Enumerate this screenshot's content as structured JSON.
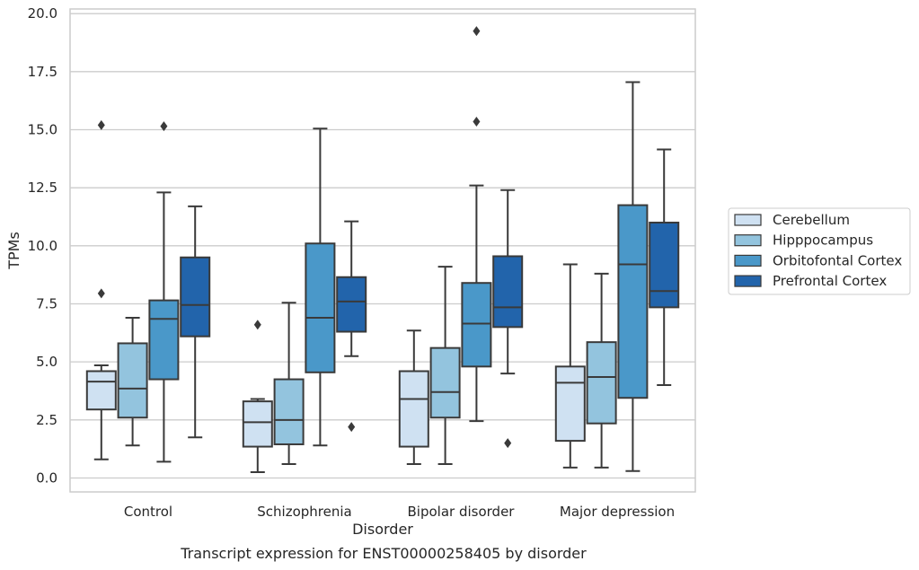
{
  "chart_data": {
    "type": "box",
    "title": "",
    "caption": "Transcript expression for ENST00000258405 by disorder",
    "xlabel": "Disorder",
    "ylabel": "TPMs",
    "ylim": [
      -0.6,
      20.2
    ],
    "yticks": [
      "0.0",
      "2.5",
      "5.0",
      "7.5",
      "10.0",
      "12.5",
      "15.0",
      "17.5",
      "20.0"
    ],
    "ytick_values": [
      0,
      2.5,
      5,
      7.5,
      10,
      12.5,
      15,
      17.5,
      20
    ],
    "grid": "horizontal",
    "legend_position": "right",
    "categories": [
      "Control",
      "Schizophrenia",
      "Bipolar disorder",
      "Major depression"
    ],
    "series": [
      {
        "name": "Cerebellum",
        "color": "#cfe1f2",
        "boxes": [
          {
            "whisker_low": 0.8,
            "q1": 2.95,
            "median": 4.15,
            "q3": 4.6,
            "whisker_high": 4.85,
            "outliers": [
              7.95,
              15.2
            ]
          },
          {
            "whisker_low": 0.25,
            "q1": 1.35,
            "median": 2.4,
            "q3": 3.3,
            "whisker_high": 3.4,
            "outliers": [
              6.6
            ]
          },
          {
            "whisker_low": 0.6,
            "q1": 1.35,
            "median": 3.4,
            "q3": 4.6,
            "whisker_high": 6.35,
            "outliers": []
          },
          {
            "whisker_low": 0.45,
            "q1": 1.6,
            "median": 4.1,
            "q3": 4.8,
            "whisker_high": 9.2,
            "outliers": []
          }
        ]
      },
      {
        "name": "Hipppocampus",
        "color": "#93c4de",
        "boxes": [
          {
            "whisker_low": 1.4,
            "q1": 2.6,
            "median": 3.85,
            "q3": 5.8,
            "whisker_high": 6.9,
            "outliers": []
          },
          {
            "whisker_low": 0.6,
            "q1": 1.45,
            "median": 2.5,
            "q3": 4.25,
            "whisker_high": 7.55,
            "outliers": []
          },
          {
            "whisker_low": 0.6,
            "q1": 2.6,
            "median": 3.7,
            "q3": 5.6,
            "whisker_high": 9.1,
            "outliers": []
          },
          {
            "whisker_low": 0.45,
            "q1": 2.35,
            "median": 4.35,
            "q3": 5.85,
            "whisker_high": 8.8,
            "outliers": []
          }
        ]
      },
      {
        "name": "Orbitofontal Cortex",
        "color": "#4a98c9",
        "boxes": [
          {
            "whisker_low": 0.7,
            "q1": 4.25,
            "median": 6.85,
            "q3": 7.65,
            "whisker_high": 12.3,
            "outliers": [
              15.15
            ]
          },
          {
            "whisker_low": 1.4,
            "q1": 4.55,
            "median": 6.9,
            "q3": 10.1,
            "whisker_high": 15.05,
            "outliers": []
          },
          {
            "whisker_low": 2.45,
            "q1": 4.8,
            "median": 6.65,
            "q3": 8.4,
            "whisker_high": 12.6,
            "outliers": [
              15.35,
              19.25
            ]
          },
          {
            "whisker_low": 0.3,
            "q1": 3.45,
            "median": 9.2,
            "q3": 11.75,
            "whisker_high": 17.05,
            "outliers": []
          }
        ]
      },
      {
        "name": "Prefrontal Cortex",
        "color": "#2264ab",
        "boxes": [
          {
            "whisker_low": 1.75,
            "q1": 6.1,
            "median": 7.45,
            "q3": 9.5,
            "whisker_high": 11.7,
            "outliers": []
          },
          {
            "whisker_low": 5.25,
            "q1": 6.3,
            "median": 7.6,
            "q3": 8.65,
            "whisker_high": 11.05,
            "outliers": [
              2.2
            ]
          },
          {
            "whisker_low": 4.5,
            "q1": 6.5,
            "median": 7.35,
            "q3": 9.55,
            "whisker_high": 12.4,
            "outliers": [
              1.5
            ]
          },
          {
            "whisker_low": 4.0,
            "q1": 7.35,
            "median": 8.05,
            "q3": 11.0,
            "whisker_high": 14.15,
            "outliers": []
          }
        ]
      }
    ]
  }
}
